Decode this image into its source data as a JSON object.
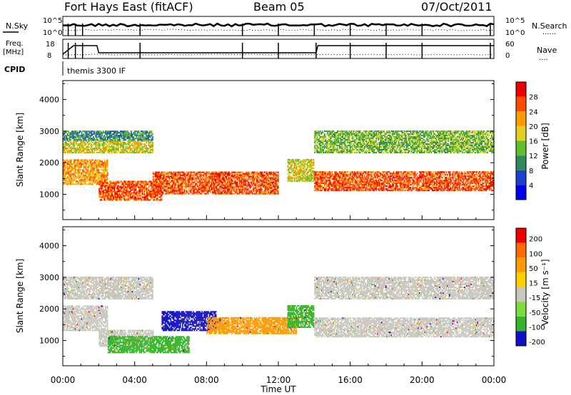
{
  "header": {
    "station": "Fort Hays East (fitACF)",
    "beam": "Beam 05",
    "date": "07/Oct/2011"
  },
  "strip_labels": {
    "nsky": "N.Sky",
    "nsearch": "N.Search",
    "nsearch_line": "......",
    "freq_line1": "Freq.",
    "freq_line2": "[MHz]",
    "nave": "Nave",
    "nave_line": "....",
    "cpid": "CPID",
    "cpid_value": "themis 3300 IF"
  },
  "strip_ticks": {
    "noise_left": [
      "10^5",
      "10^0"
    ],
    "noise_right": [
      "10^5",
      "10^0"
    ],
    "freq_left": [
      "18",
      "8"
    ],
    "nave_right": [
      "60",
      "0"
    ]
  },
  "colors": {
    "power": [
      "#0000ee",
      "#1e40d0",
      "#2e8b57",
      "#5dc02a",
      "#e0d020",
      "#ff9a00",
      "#ff4a00",
      "#ee0000"
    ],
    "velocity": [
      "#ee0000",
      "#ff6a00",
      "#ff9a00",
      "#ffd000",
      "#c8c8c0",
      "#7ddc3a",
      "#35b52a",
      "#1010c8"
    ],
    "ground_scatter": "#c8c8c0"
  },
  "chart_data": [
    {
      "type": "heatmap",
      "quantity": "power",
      "ylabel": "Slant Range [km]",
      "yticks": [
        "1000",
        "2000",
        "3000",
        "4000"
      ],
      "ylim": [
        200,
        4600
      ],
      "xlim": [
        0,
        24
      ],
      "colorbar": {
        "label": "Power [dB]",
        "ticks": [
          "4",
          "8",
          "12",
          "16",
          "20",
          "24",
          "28"
        ],
        "range": [
          0,
          32
        ]
      },
      "scatter_regions": [
        {
          "t": [
            0,
            5
          ],
          "r": [
            2300,
            2700
          ],
          "level": 4
        },
        {
          "t": [
            0,
            5
          ],
          "r": [
            2700,
            3000
          ],
          "level": 2
        },
        {
          "t": [
            0,
            2.5
          ],
          "r": [
            1300,
            2100
          ],
          "level": 5
        },
        {
          "t": [
            2,
            5.5
          ],
          "r": [
            800,
            1400
          ],
          "level": 6
        },
        {
          "t": [
            5,
            12
          ],
          "r": [
            1000,
            1700
          ],
          "level": 6
        },
        {
          "t": [
            12.5,
            14
          ],
          "r": [
            1400,
            2100
          ],
          "level": 4
        },
        {
          "t": [
            14,
            24
          ],
          "r": [
            1100,
            1700
          ],
          "level": 6
        },
        {
          "t": [
            14,
            24
          ],
          "r": [
            2300,
            3000
          ],
          "level": 3
        }
      ]
    },
    {
      "type": "heatmap",
      "quantity": "velocity",
      "ylabel": "Slant Range [km]",
      "xlabel": "Time UT",
      "yticks": [
        "1000",
        "2000",
        "3000",
        "4000"
      ],
      "xticks": [
        "00:00",
        "04:00",
        "08:00",
        "12:00",
        "16:00",
        "20:00",
        "00:00"
      ],
      "ylim": [
        200,
        4600
      ],
      "xlim": [
        0,
        24
      ],
      "colorbar": {
        "label": "Velocity [m s⁻¹]",
        "ticks": [
          "200",
          "100",
          "50",
          "15",
          "-15",
          "-50",
          "-100",
          "-200"
        ],
        "range": [
          -300,
          300
        ]
      },
      "scatter_regions": [
        {
          "t": [
            0,
            5
          ],
          "r": [
            2300,
            3000
          ],
          "class": "ground"
        },
        {
          "t": [
            0,
            2.5
          ],
          "r": [
            1300,
            2100
          ],
          "class": "ground"
        },
        {
          "t": [
            2,
            5
          ],
          "r": [
            800,
            1300
          ],
          "class": "ground"
        },
        {
          "t": [
            2.5,
            7
          ],
          "r": [
            600,
            1100
          ],
          "class": "green"
        },
        {
          "t": [
            5.5,
            8.5
          ],
          "r": [
            1300,
            1900
          ],
          "class": "blue"
        },
        {
          "t": [
            8,
            13
          ],
          "r": [
            1200,
            1700
          ],
          "class": "orange"
        },
        {
          "t": [
            12.5,
            14
          ],
          "r": [
            1400,
            2100
          ],
          "class": "green"
        },
        {
          "t": [
            14,
            24
          ],
          "r": [
            1100,
            1700
          ],
          "class": "ground"
        },
        {
          "t": [
            14,
            24
          ],
          "r": [
            2300,
            3000
          ],
          "class": "ground"
        }
      ]
    }
  ]
}
